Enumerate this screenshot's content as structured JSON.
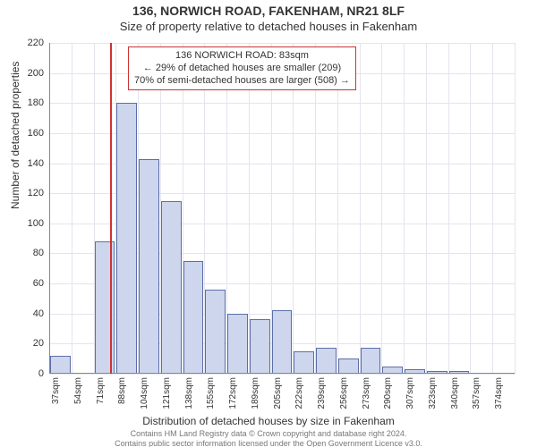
{
  "title": "136, NORWICH ROAD, FAKENHAM, NR21 8LF",
  "subtitle": "Size of property relative to detached houses in Fakenham",
  "y_axis": {
    "title": "Number of detached properties",
    "min": 0,
    "max": 220,
    "step": 20
  },
  "x_axis": {
    "title": "Distribution of detached houses by size in Fakenham",
    "labels": [
      "37sqm",
      "54sqm",
      "71sqm",
      "88sqm",
      "104sqm",
      "121sqm",
      "138sqm",
      "155sqm",
      "172sqm",
      "189sqm",
      "205sqm",
      "222sqm",
      "239sqm",
      "256sqm",
      "273sqm",
      "290sqm",
      "307sqm",
      "323sqm",
      "340sqm",
      "357sqm",
      "374sqm"
    ]
  },
  "bars": {
    "values": [
      12,
      0,
      88,
      180,
      143,
      115,
      75,
      56,
      40,
      36,
      42,
      15,
      17,
      10,
      17,
      5,
      3,
      2,
      2,
      0,
      0
    ],
    "fill_color": "#cdd6ec",
    "stroke_color": "#5b6ea8"
  },
  "marker": {
    "x_value_sqm": 83,
    "color": "#cc3333"
  },
  "callout": {
    "line1": "136 NORWICH ROAD: 83sqm",
    "line2": "← 29% of detached houses are smaller (209)",
    "line3": "70% of semi-detached houses are larger (508) →",
    "border_color": "#cc3333"
  },
  "attribution": {
    "line1": "Contains HM Land Registry data © Crown copyright and database right 2024.",
    "line2": "Contains public sector information licensed under the Open Government Licence v3.0."
  },
  "style": {
    "background_color": "#ffffff",
    "grid_color": "#e4e4ee",
    "axis_color": "#888888",
    "title_fontsize": 14,
    "subtitle_fontsize": 13,
    "tick_fontsize": 11,
    "callout_fontsize": 11
  }
}
